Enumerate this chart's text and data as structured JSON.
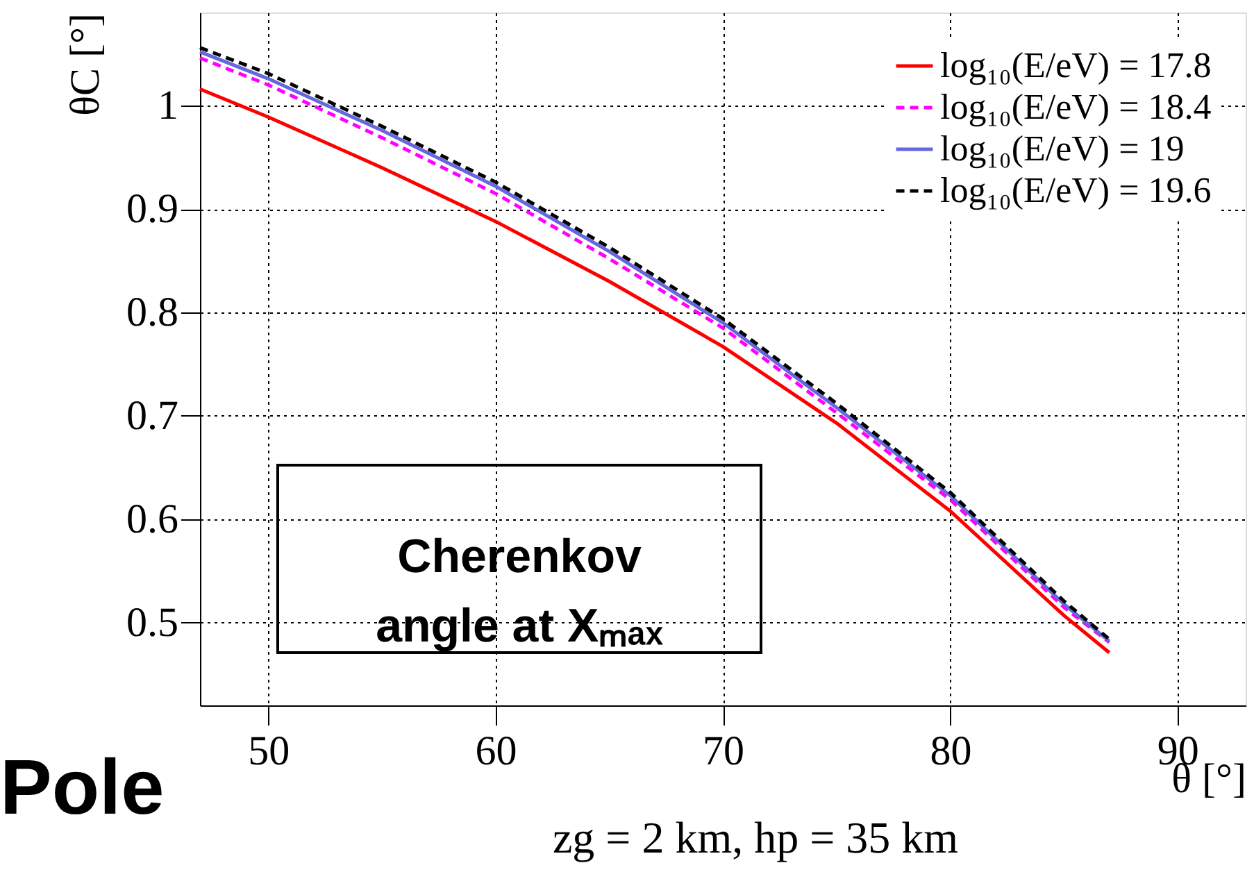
{
  "chart_data": {
    "type": "line",
    "xlabel": "θ [°]",
    "ylabel": "θC [°]",
    "x": [
      47,
      50,
      55,
      60,
      65,
      70,
      75,
      80,
      85,
      87
    ],
    "series": [
      {
        "name": "log₁₀(E/eV) = 17.8",
        "color": "#ff0000",
        "line_style": "solid",
        "values": [
          1.016,
          0.989,
          0.94,
          0.888,
          0.83,
          0.767,
          0.693,
          0.608,
          0.507,
          0.471
        ]
      },
      {
        "name": "log₁₀(E/eV) = 18.4",
        "color": "#ff00ff",
        "line_style": "dashed",
        "values": [
          1.046,
          1.02,
          0.969,
          0.915,
          0.852,
          0.785,
          0.703,
          0.619,
          0.515,
          0.481
        ]
      },
      {
        "name": "log₁₀(E/eV) = 19",
        "color": "#6666dd",
        "line_style": "solid",
        "values": [
          1.052,
          1.026,
          0.976,
          0.922,
          0.859,
          0.79,
          0.708,
          0.623,
          0.518,
          0.482
        ]
      },
      {
        "name": "log₁₀(E/eV) = 19.6",
        "color": "#000000",
        "line_style": "dashed",
        "values": [
          1.056,
          1.031,
          0.98,
          0.926,
          0.863,
          0.794,
          0.712,
          0.626,
          0.521,
          0.484
        ]
      }
    ],
    "xlim": [
      47,
      93
    ],
    "xticks": [
      50,
      60,
      70,
      80,
      90
    ],
    "ylim": [
      0.42,
      1.09
    ],
    "yticks": [
      0.5,
      0.6,
      0.7,
      0.8,
      0.9,
      1
    ],
    "grid": true,
    "legend": "top right",
    "marker": "none",
    "annotations": [
      "Cherenkov\nangle at Xₘₐₓ",
      "Pole",
      "zg = 2 km, hp = 35 km"
    ]
  }
}
